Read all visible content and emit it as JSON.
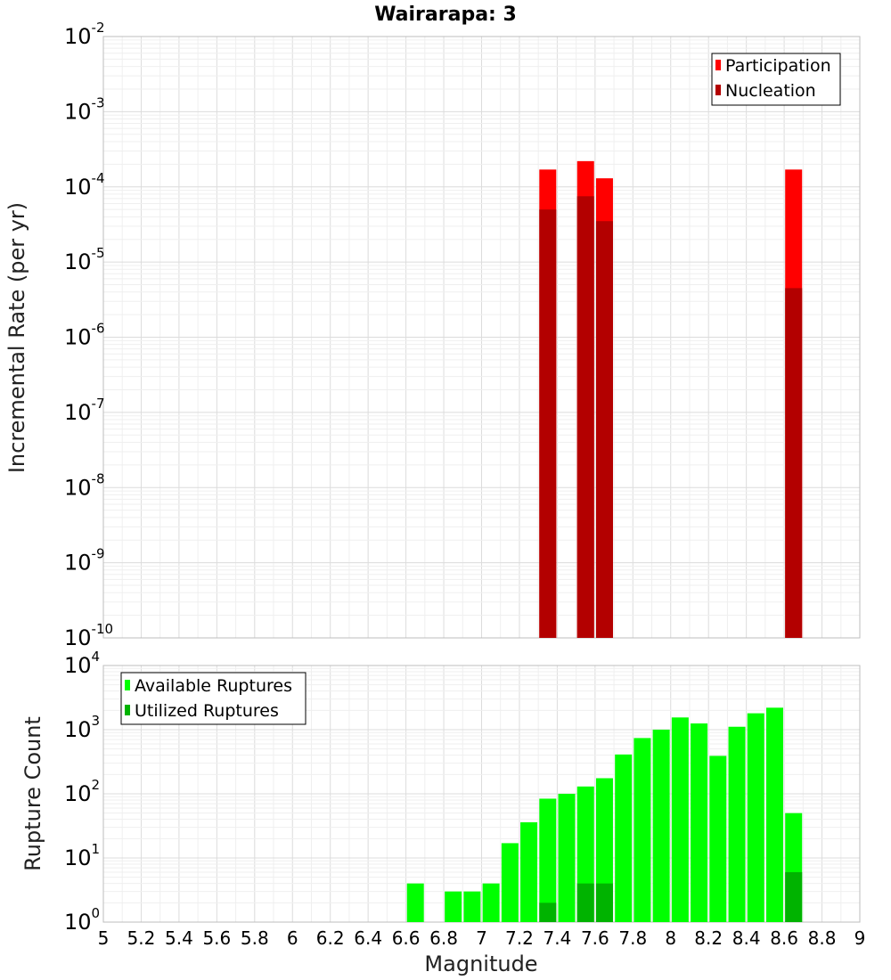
{
  "chart_data": [
    {
      "type": "bar",
      "title": "Wairarapa: 3",
      "xlabel": "",
      "ylabel": "Incremental Rate (per yr)",
      "yscale": "log",
      "ylim_exponents": [
        -10,
        -2
      ],
      "xlim": [
        5,
        9
      ],
      "grid": true,
      "legend_position": "top-right",
      "series": [
        {
          "name": "Participation",
          "color": "#ff0000",
          "points": [
            {
              "x": 7.35,
              "y": 0.00017
            },
            {
              "x": 7.55,
              "y": 0.00022
            },
            {
              "x": 7.65,
              "y": 0.00013
            },
            {
              "x": 8.65,
              "y": 0.00017
            }
          ]
        },
        {
          "name": "Nucleation",
          "color": "#b30000",
          "points": [
            {
              "x": 7.35,
              "y": 5e-05
            },
            {
              "x": 7.55,
              "y": 7.5e-05
            },
            {
              "x": 7.65,
              "y": 3.5e-05
            },
            {
              "x": 8.65,
              "y": 4.5e-06
            }
          ]
        }
      ]
    },
    {
      "type": "bar",
      "title": "",
      "xlabel": "Magnitude",
      "ylabel": "Rupture Count",
      "yscale": "log",
      "ylim_exponents": [
        0,
        4
      ],
      "xlim": [
        5,
        9
      ],
      "grid": true,
      "legend_position": "top-left",
      "x_tick_labels": [
        "5",
        "5.2",
        "5.4",
        "5.6",
        "5.8",
        "6",
        "6.2",
        "6.4",
        "6.6",
        "6.8",
        "7",
        "7.2",
        "7.4",
        "7.6",
        "7.8",
        "8",
        "8.2",
        "8.4",
        "8.6",
        "8.8",
        "9"
      ],
      "series": [
        {
          "name": "Available Ruptures",
          "color": "#00ff00",
          "points": [
            {
              "x": 6.65,
              "y": 4
            },
            {
              "x": 6.85,
              "y": 3
            },
            {
              "x": 6.95,
              "y": 3
            },
            {
              "x": 7.05,
              "y": 4
            },
            {
              "x": 7.15,
              "y": 17
            },
            {
              "x": 7.25,
              "y": 36
            },
            {
              "x": 7.35,
              "y": 84
            },
            {
              "x": 7.45,
              "y": 100
            },
            {
              "x": 7.55,
              "y": 130
            },
            {
              "x": 7.65,
              "y": 175
            },
            {
              "x": 7.75,
              "y": 410
            },
            {
              "x": 7.85,
              "y": 740
            },
            {
              "x": 7.95,
              "y": 1000
            },
            {
              "x": 8.05,
              "y": 1550
            },
            {
              "x": 8.15,
              "y": 1250
            },
            {
              "x": 8.25,
              "y": 390
            },
            {
              "x": 8.35,
              "y": 1110
            },
            {
              "x": 8.45,
              "y": 1800
            },
            {
              "x": 8.55,
              "y": 2200
            },
            {
              "x": 8.65,
              "y": 50
            }
          ]
        },
        {
          "name": "Utilized Ruptures",
          "color": "#00b300",
          "points": [
            {
              "x": 7.35,
              "y": 2
            },
            {
              "x": 7.55,
              "y": 4
            },
            {
              "x": 7.65,
              "y": 4
            },
            {
              "x": 8.65,
              "y": 6
            }
          ]
        }
      ]
    }
  ]
}
